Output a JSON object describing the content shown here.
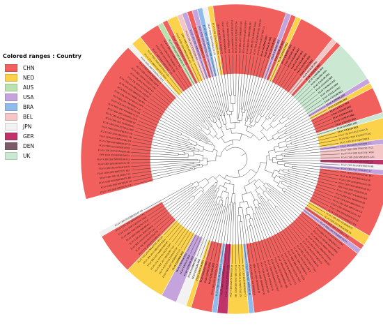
{
  "legend": {
    "title": "Colored ranges : Country",
    "items": [
      {
        "label": "CHN",
        "color": "#f1605d"
      },
      {
        "label": "NED",
        "color": "#fbd24a"
      },
      {
        "label": "AUS",
        "color": "#b9e2ad"
      },
      {
        "label": "USA",
        "color": "#c5a3dd"
      },
      {
        "label": "BRA",
        "color": "#8fbcec"
      },
      {
        "label": "BEL",
        "color": "#f5c6c6"
      },
      {
        "label": "JPN",
        "color": "#f2f2f2"
      },
      {
        "label": "GER",
        "color": "#c0326a"
      },
      {
        "label": "DEN",
        "color": "#7b5a67"
      },
      {
        "label": "UK",
        "color": "#cbe8d2"
      }
    ]
  },
  "ring": [
    [
      "CHN",
      31
    ],
    [
      "JPN",
      1
    ],
    [
      "NED",
      2
    ],
    [
      "CHN",
      4
    ],
    [
      "AUS",
      1
    ],
    [
      "CHN",
      1
    ],
    [
      "NED",
      2
    ],
    [
      "BEL",
      1
    ],
    [
      "USA",
      1
    ],
    [
      "CHN",
      1
    ],
    [
      "USA",
      1
    ],
    [
      "BRA",
      1
    ],
    [
      "JPN",
      1
    ],
    [
      "NED",
      1
    ],
    [
      "CHN",
      14
    ],
    [
      "USA",
      1
    ],
    [
      "CHN",
      1
    ],
    [
      "NED",
      1
    ],
    [
      "CHN",
      7
    ],
    [
      "BEL",
      1
    ],
    [
      "CHN",
      1
    ],
    [
      "UK",
      8
    ],
    [
      "USA",
      1
    ],
    [
      "NED",
      1
    ],
    [
      "CHN",
      5
    ],
    [
      "UK",
      1
    ],
    [
      "NED",
      4
    ],
    [
      "USA",
      1
    ],
    [
      "BEL",
      3
    ],
    [
      "GER",
      1
    ],
    [
      "JPN",
      1
    ],
    [
      "USA",
      1
    ],
    [
      "CHN",
      12
    ],
    [
      "NED",
      2
    ],
    [
      "CHN",
      1
    ],
    [
      "USA",
      1
    ],
    [
      "CHN",
      23
    ],
    [
      "BRA",
      1
    ],
    [
      "NED",
      4
    ],
    [
      "GER",
      2
    ],
    [
      "BRA",
      1
    ],
    [
      "CHN",
      4
    ],
    [
      "NED",
      1
    ],
    [
      "JPN",
      2
    ],
    [
      "USA",
      3
    ],
    [
      "NED",
      8
    ],
    [
      "CHN",
      8
    ],
    [
      "JPN",
      1
    ]
  ],
  "bold_labels": [
    "FCoV GXGG12022",
    "FCoV GXYL04 2022",
    "FCoV GXGL07 2022",
    "FCoV GXNN08 2022",
    "FCoV GXNN02 2022",
    "FCoV GXYL06 2022",
    "FCoV GXGG03 2022",
    "FCoV GXNN12 2022",
    "FCoV GXGG15 2022",
    "FCoV GXGL14 2022",
    "FCoV GXYL08 2022",
    "FCoV GXNN09 2022",
    "FCoV GXNN04 2022",
    "FCoV GXGL11 2022",
    "FCoV GXNN10 2022",
    "FCoV GXNN16 2022",
    "FCoV GXYL05 2022",
    "FCoV GXGL03 2022",
    "FCoV GXNN07 2022",
    "FCoV GXYL02 2022",
    "FCoV GXGG06 2022",
    "FCoV GXNN13 2022",
    "FCoV GXGL09 2022",
    "FCoV GXNN15 2022"
  ],
  "labels": [
    "FCoV CHN 2020 MN520253 GX1",
    "FCoV CHN 2018 MN165107 GS",
    "FCoV CHN 2019 MW580576 HB",
    "FCoV CHN 2021 OL963817 SC",
    "FCoV CHN 2020 MN527237 HLJ",
    "FCoV CHN 2019 MT444152 JS",
    "FCoV CHN 2018 MN165101 SD",
    "FCoV CHN 2020 MW030104 CQ",
    "FIPV CHN 2019 MT663549 ZJ",
    "FCoV CHN 2017 KY566209 AH",
    "FCoV CHN 2021 MZ895103 BJ",
    "FCoV CHN 2020 MW030107 TJ",
    "FCoV CHN 2019 MN527242 LN",
    "FCoV CHN 2018 MK542312 SH",
    "FCoV CHN 2020 MT663552 GD",
    "FCoV CHN 2016 KY566214 HN",
    "FCoV CHN 2021 OL963820 FJ",
    "FCoV CHN 2019 MN165098 SX",
    "FCoV NED 2007 FJ938054 UU8",
    "FCoV NED 2007 FJ938060 UU15",
    "FCoV AUS 2013 KF530123 Ch4",
    "FCoV BEL 2017 MF426301 Cat1",
    "FCoV USA 1979 KC461235 FIPV",
    "FCoV BRA 2015 MH817484 SP1",
    "FCoV JPN 2013 AB907624 Tokyo",
    "FCoV USA 2014 MF457391 OH1507",
    "FCoV UK 2016 KU215420 C4",
    "FCoV UK 2016 KU215424 C8",
    "FCoV BEL 2016 KY292377 Cat2",
    "FCoV GER 2011 HQ012368 K",
    "FCoV DEN 2008 JN634064 C1",
    "FCoV NED 2008 FJ943761 UU22",
    "FCoV USA 2009 GQ152141 WSU"
  ]
}
